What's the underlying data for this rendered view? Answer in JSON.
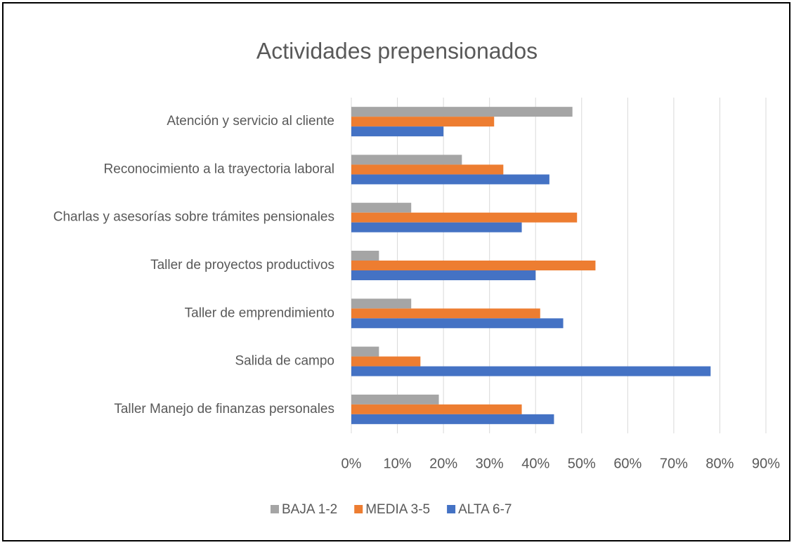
{
  "chart_data": {
    "type": "hbar",
    "title": "Actividades prepensionados",
    "categories": [
      "Atención y servicio al cliente",
      "Reconocimiento a la trayectoria laboral",
      "Charlas y asesorías sobre trámites pensionales",
      "Taller de proyectos productivos",
      "Taller de emprendimiento",
      "Salida de campo",
      "Taller Manejo de finanzas personales"
    ],
    "series": [
      {
        "name": "BAJA 1-2",
        "color": "#a5a5a5",
        "values": [
          48,
          24,
          13,
          6,
          13,
          6,
          19
        ]
      },
      {
        "name": "MEDIA 3-5",
        "color": "#ed7d31",
        "values": [
          31,
          33,
          49,
          53,
          41,
          15,
          37
        ]
      },
      {
        "name": "ALTA 6-7",
        "color": "#4472c4",
        "values": [
          20,
          43,
          37,
          40,
          46,
          78,
          44
        ]
      }
    ],
    "xlim": [
      0,
      90
    ],
    "xticks": [
      {
        "value": 0,
        "label": "0%"
      },
      {
        "value": 10,
        "label": "10%"
      },
      {
        "value": 20,
        "label": "20%"
      },
      {
        "value": 30,
        "label": "30%"
      },
      {
        "value": 40,
        "label": "40%"
      },
      {
        "value": 50,
        "label": "50%"
      },
      {
        "value": 60,
        "label": "60%"
      },
      {
        "value": 70,
        "label": "70%"
      },
      {
        "value": 80,
        "label": "80%"
      },
      {
        "value": 90,
        "label": "90%"
      }
    ],
    "grid": true,
    "legend": "bottom"
  }
}
